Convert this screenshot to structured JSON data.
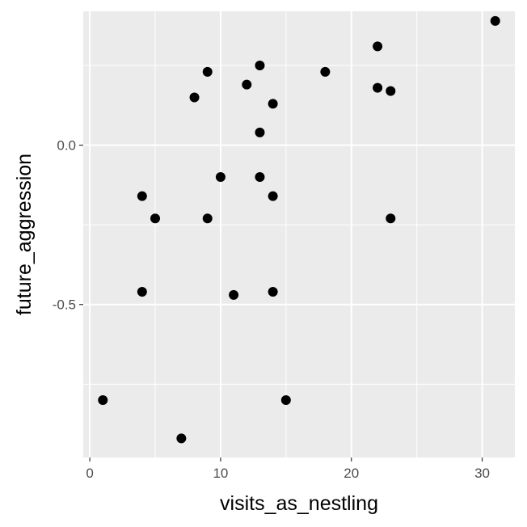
{
  "chart_data": {
    "type": "scatter",
    "xlabel": "visits_as_nestling",
    "ylabel": "future_aggression",
    "xlim": [
      -0.5,
      32.5
    ],
    "ylim": [
      -0.98,
      0.42
    ],
    "x_ticks": [
      0,
      10,
      20,
      30
    ],
    "x_tick_labels": [
      "0",
      "10",
      "20",
      "30"
    ],
    "x_minor": [
      5,
      15,
      25
    ],
    "y_ticks": [
      0.0,
      -0.5
    ],
    "y_tick_labels": [
      "0.0",
      "-0.5"
    ],
    "y_minor": [
      0.25,
      -0.25,
      -0.75
    ],
    "grid": true,
    "panel_color": "#ebebeb",
    "grid_color": "#ffffff",
    "point_color": "#000000",
    "points": [
      {
        "x": 1,
        "y": -0.8
      },
      {
        "x": 4,
        "y": -0.16
      },
      {
        "x": 4,
        "y": -0.46
      },
      {
        "x": 5,
        "y": -0.23
      },
      {
        "x": 7,
        "y": -0.92
      },
      {
        "x": 8,
        "y": 0.15
      },
      {
        "x": 9,
        "y": 0.23
      },
      {
        "x": 9,
        "y": -0.23
      },
      {
        "x": 10,
        "y": -0.1
      },
      {
        "x": 11,
        "y": -0.47
      },
      {
        "x": 12,
        "y": 0.19
      },
      {
        "x": 13,
        "y": 0.25
      },
      {
        "x": 13,
        "y": 0.04
      },
      {
        "x": 13,
        "y": -0.1
      },
      {
        "x": 14,
        "y": 0.13
      },
      {
        "x": 14,
        "y": -0.16
      },
      {
        "x": 14,
        "y": -0.46
      },
      {
        "x": 15,
        "y": -0.8
      },
      {
        "x": 18,
        "y": 0.23
      },
      {
        "x": 22,
        "y": 0.31
      },
      {
        "x": 22,
        "y": 0.18
      },
      {
        "x": 23,
        "y": 0.17
      },
      {
        "x": 23,
        "y": -0.23
      },
      {
        "x": 31,
        "y": 0.39
      }
    ]
  }
}
